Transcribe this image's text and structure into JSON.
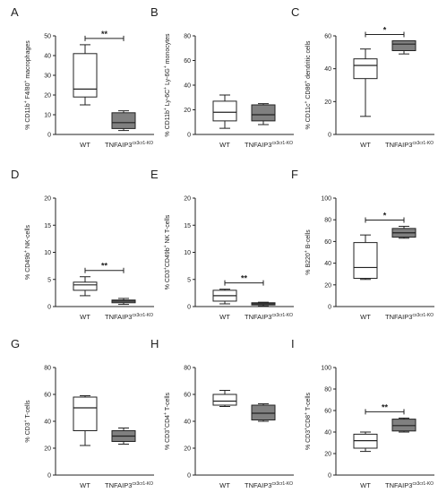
{
  "chart_data": [
    {
      "type": "boxplot",
      "panel": "A",
      "ylabel": "% CD11b+ F4/80+ macrophages",
      "ylabel_parts": [
        [
          "% CD11b",
          ""
        ],
        [
          "+",
          "sup"
        ],
        [
          " F4/80",
          ""
        ],
        [
          "+",
          "sup"
        ],
        [
          " macrophages",
          ""
        ]
      ],
      "ylim": [
        0,
        50
      ],
      "yticks": [
        0,
        10,
        20,
        30,
        40,
        50
      ],
      "categories": [
        "WT",
        "TNFAIP3cx3cr1-KO"
      ],
      "series": [
        {
          "group": "WT",
          "min": 15,
          "q1": 19,
          "median": 23,
          "q3": 41,
          "max": 45.5,
          "color": "#ffffff"
        },
        {
          "group": "TNFAIP3cx3cr1-KO",
          "min": 2,
          "q1": 3,
          "median": 6,
          "q3": 11,
          "max": 12,
          "color": "#808080"
        }
      ],
      "significance": "**"
    },
    {
      "type": "boxplot",
      "panel": "B",
      "ylabel": "% CD11b+ Ly-6C+ Ly-6G+ monocytes",
      "ylabel_parts": [
        [
          "% CD11b",
          ""
        ],
        [
          "+",
          "sup"
        ],
        [
          " Ly-6C",
          ""
        ],
        [
          "+",
          "sup"
        ],
        [
          " Ly-6G",
          ""
        ],
        [
          "+",
          "sup"
        ],
        [
          " monocytes",
          ""
        ]
      ],
      "ylim": [
        0,
        80
      ],
      "yticks": [
        0,
        20,
        40,
        60,
        80
      ],
      "categories": [
        "WT",
        "TNFAIP3cx3cr1-KO"
      ],
      "series": [
        {
          "group": "WT",
          "min": 5,
          "q1": 11,
          "median": 18,
          "q3": 27,
          "max": 32,
          "color": "#ffffff"
        },
        {
          "group": "TNFAIP3cx3cr1-KO",
          "min": 8,
          "q1": 11,
          "median": 16,
          "q3": 24,
          "max": 25,
          "color": "#808080"
        }
      ],
      "significance": ""
    },
    {
      "type": "boxplot",
      "panel": "C",
      "ylabel": "% CD11c+ CD86+ dendritic cells",
      "ylabel_parts": [
        [
          "% CD11c",
          ""
        ],
        [
          "+",
          "sup"
        ],
        [
          " CD86",
          ""
        ],
        [
          "+",
          "sup"
        ],
        [
          " dendritic cells",
          ""
        ]
      ],
      "ylim": [
        0,
        60
      ],
      "yticks": [
        0,
        20,
        40,
        60
      ],
      "categories": [
        "WT",
        "TNFAIP3cx3cr1-KO"
      ],
      "series": [
        {
          "group": "WT",
          "min": 11,
          "q1": 34,
          "median": 42,
          "q3": 46,
          "max": 52,
          "color": "#ffffff"
        },
        {
          "group": "TNFAIP3cx3cr1-KO",
          "min": 49,
          "q1": 51,
          "median": 55,
          "q3": 57,
          "max": 57,
          "color": "#808080"
        }
      ],
      "significance": "*"
    },
    {
      "type": "boxplot",
      "panel": "D",
      "ylabel": "% CD49b+ NK-cells",
      "ylabel_parts": [
        [
          "% CD49b",
          ""
        ],
        [
          "+",
          "sup"
        ],
        [
          " NK-cells",
          ""
        ]
      ],
      "ylim": [
        0,
        20
      ],
      "yticks": [
        0,
        5,
        10,
        15,
        20
      ],
      "categories": [
        "WT",
        "TNFAIP3cx3cr1-KO"
      ],
      "series": [
        {
          "group": "WT",
          "min": 2,
          "q1": 3,
          "median": 4,
          "q3": 4.5,
          "max": 5.5,
          "color": "#ffffff"
        },
        {
          "group": "TNFAIP3cx3cr1-KO",
          "min": 0.4,
          "q1": 0.7,
          "median": 1,
          "q3": 1.2,
          "max": 1.5,
          "color": "#808080"
        }
      ],
      "significance": "**"
    },
    {
      "type": "boxplot",
      "panel": "E",
      "ylabel": "% CD3+CD49b+ NK T-cells",
      "ylabel_parts": [
        [
          "% CD3",
          ""
        ],
        [
          "+",
          "sup"
        ],
        [
          "CD49b",
          ""
        ],
        [
          "+",
          "sup"
        ],
        [
          " NK T-cells",
          ""
        ]
      ],
      "ylim": [
        0,
        20
      ],
      "yticks": [
        0,
        5,
        10,
        15,
        20
      ],
      "categories": [
        "WT",
        "TNFAIP3cx3cr1-KO"
      ],
      "series": [
        {
          "group": "WT",
          "min": 0.5,
          "q1": 1,
          "median": 2,
          "q3": 3,
          "max": 3.2,
          "color": "#ffffff"
        },
        {
          "group": "TNFAIP3cx3cr1-KO",
          "min": 0.1,
          "q1": 0.3,
          "median": 0.5,
          "q3": 0.7,
          "max": 0.8,
          "color": "#808080"
        }
      ],
      "significance": "**"
    },
    {
      "type": "boxplot",
      "panel": "F",
      "ylabel": "% B220+ B-cells",
      "ylabel_parts": [
        [
          "% B220",
          ""
        ],
        [
          "+",
          "sup"
        ],
        [
          " B-cells",
          ""
        ]
      ],
      "ylim": [
        0,
        100
      ],
      "yticks": [
        0,
        20,
        40,
        60,
        80,
        100
      ],
      "categories": [
        "WT",
        "TNFAIP3cx3cr1-KO"
      ],
      "series": [
        {
          "group": "WT",
          "min": 25,
          "q1": 26,
          "median": 36,
          "q3": 59,
          "max": 66,
          "color": "#ffffff"
        },
        {
          "group": "TNFAIP3cx3cr1-KO",
          "min": 63,
          "q1": 64,
          "median": 68,
          "q3": 72,
          "max": 74,
          "color": "#808080"
        }
      ],
      "significance": "*"
    },
    {
      "type": "boxplot",
      "panel": "G",
      "ylabel": "% CD3+ T-cells",
      "ylabel_parts": [
        [
          "% CD3",
          ""
        ],
        [
          "+",
          "sup"
        ],
        [
          " T-cells",
          ""
        ]
      ],
      "ylim": [
        0,
        80
      ],
      "yticks": [
        0,
        20,
        40,
        60,
        80
      ],
      "categories": [
        "WT",
        "TNFAIP3cx3cr1-KO"
      ],
      "series": [
        {
          "group": "WT",
          "min": 22,
          "q1": 33,
          "median": 50,
          "q3": 58,
          "max": 59,
          "color": "#ffffff"
        },
        {
          "group": "TNFAIP3cx3cr1-KO",
          "min": 23,
          "q1": 25,
          "median": 29,
          "q3": 33,
          "max": 35,
          "color": "#808080"
        }
      ],
      "significance": ""
    },
    {
      "type": "boxplot",
      "panel": "H",
      "ylabel": "% CD3+CD4+ T-cells",
      "ylabel_parts": [
        [
          "% CD3",
          ""
        ],
        [
          "+",
          "sup"
        ],
        [
          "CD4",
          ""
        ],
        [
          "+",
          "sup"
        ],
        [
          " T-cells",
          ""
        ]
      ],
      "ylim": [
        0,
        80
      ],
      "yticks": [
        0,
        20,
        40,
        60,
        80
      ],
      "categories": [
        "WT",
        "TNFAIP3cx3cr1-KO"
      ],
      "series": [
        {
          "group": "WT",
          "min": 51,
          "q1": 52,
          "median": 55,
          "q3": 60,
          "max": 63,
          "color": "#ffffff"
        },
        {
          "group": "TNFAIP3cx3cr1-KO",
          "min": 40,
          "q1": 41,
          "median": 46,
          "q3": 52,
          "max": 53,
          "color": "#808080"
        }
      ],
      "significance": ""
    },
    {
      "type": "boxplot",
      "panel": "I",
      "ylabel": "% CD3+CD8+ T-cells",
      "ylabel_parts": [
        [
          "% CD3",
          ""
        ],
        [
          "+",
          "sup"
        ],
        [
          "CD8",
          ""
        ],
        [
          "+",
          "sup"
        ],
        [
          " T-cells",
          ""
        ]
      ],
      "ylim": [
        0,
        100
      ],
      "yticks": [
        0,
        20,
        40,
        60,
        80,
        100
      ],
      "categories": [
        "WT",
        "TNFAIP3cx3cr1-KO"
      ],
      "series": [
        {
          "group": "WT",
          "min": 22,
          "q1": 25,
          "median": 32,
          "q3": 38,
          "max": 40,
          "color": "#ffffff"
        },
        {
          "group": "TNFAIP3cx3cr1-KO",
          "min": 40,
          "q1": 41,
          "median": 46,
          "q3": 52,
          "max": 53,
          "color": "#808080"
        }
      ],
      "significance": "**"
    }
  ]
}
